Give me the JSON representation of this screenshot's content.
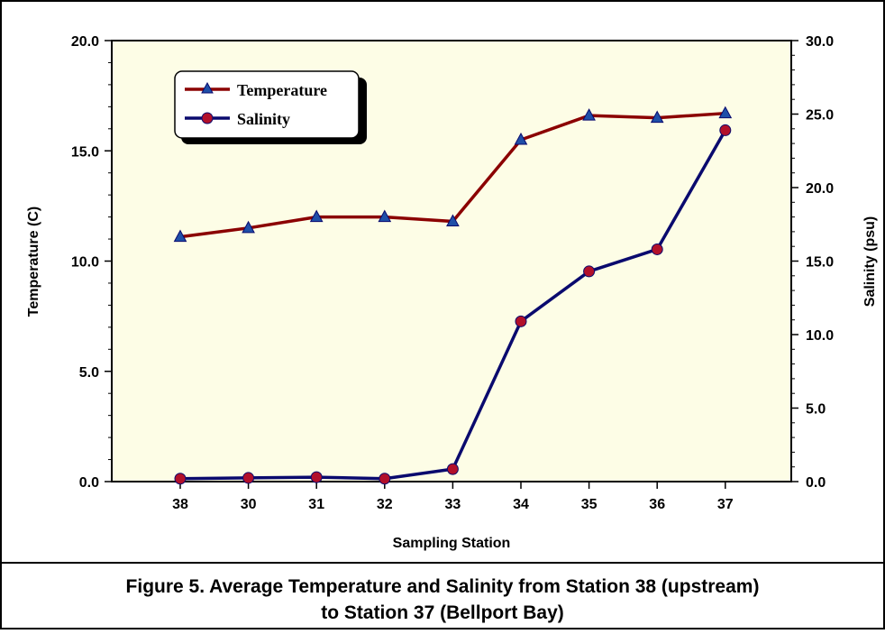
{
  "chart_data": {
    "type": "line",
    "title": "",
    "caption_lines": [
      "Figure 5. Average Temperature and Salinity from Station 38 (upstream)",
      "to Station 37 (Bellport Bay)"
    ],
    "xlabel": "Sampling Station",
    "ylabel": "Temperature (C)",
    "y2label": "Salinity (psu)",
    "categories": [
      "38",
      "30",
      "31",
      "32",
      "33",
      "34",
      "35",
      "36",
      "37"
    ],
    "ylim": [
      0,
      20
    ],
    "y2lim": [
      0,
      30
    ],
    "yticks": [
      "0.0",
      "5.0",
      "10.0",
      "15.0",
      "20.0"
    ],
    "y2ticks": [
      "0.0",
      "5.0",
      "10.0",
      "15.0",
      "20.0",
      "25.0",
      "30.0"
    ],
    "series": [
      {
        "name": "Temperature",
        "axis": "left",
        "color": "#8b0000",
        "marker": "triangle",
        "marker_color": "#1f4fa8",
        "values": [
          11.1,
          11.5,
          12.0,
          12.0,
          11.8,
          15.5,
          16.6,
          16.5,
          16.7
        ]
      },
      {
        "name": "Salinity",
        "axis": "right",
        "color": "#0a0a6e",
        "marker": "circle",
        "marker_color": "#b2102a",
        "values": [
          0.2,
          0.25,
          0.3,
          0.2,
          0.85,
          10.9,
          14.3,
          15.8,
          23.9
        ]
      }
    ],
    "legend_position": "top-left",
    "plot_background": "#fdfde6",
    "grid": false
  }
}
